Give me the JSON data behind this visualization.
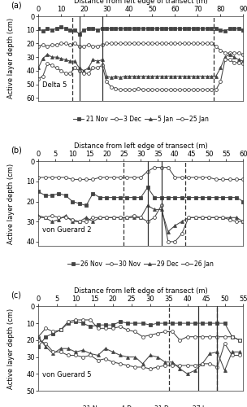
{
  "panel_a": {
    "title": "Distance from left edge of transect (m)",
    "ylabel": "Active layer depth (cm)",
    "label": "Delta 5",
    "xlabel_ticks": [
      0,
      10,
      20,
      30,
      40,
      50,
      60,
      70,
      80,
      90
    ],
    "ylim": [
      62,
      0
    ],
    "yticks": [
      0,
      10,
      20,
      30,
      40,
      50,
      60
    ],
    "solid_vlines": [
      18,
      28
    ],
    "dashed_vlines": [
      15,
      77
    ],
    "series": {
      "21 Nov": {
        "x": [
          0,
          2,
          4,
          6,
          8,
          10,
          12,
          14,
          16,
          18,
          20,
          22,
          24,
          26,
          28,
          30,
          32,
          34,
          36,
          38,
          40,
          42,
          44,
          46,
          48,
          50,
          52,
          54,
          56,
          58,
          60,
          62,
          64,
          66,
          68,
          70,
          72,
          74,
          76,
          78,
          80,
          82,
          84,
          86,
          88,
          90
        ],
        "y": [
          9,
          11,
          9,
          10,
          9,
          8,
          9,
          10,
          10,
          13,
          10,
          9,
          9,
          10,
          9,
          9,
          9,
          9,
          9,
          9,
          9,
          9,
          9,
          9,
          9,
          9,
          9,
          9,
          9,
          9,
          9,
          9,
          9,
          9,
          9,
          9,
          9,
          9,
          9,
          9,
          10,
          11,
          9,
          9,
          9,
          10
        ],
        "marker": "s",
        "filled": true
      },
      "3 Dec": {
        "x": [
          0,
          2,
          4,
          6,
          8,
          10,
          12,
          14,
          16,
          18,
          20,
          22,
          24,
          26,
          28,
          30,
          32,
          34,
          36,
          38,
          40,
          42,
          44,
          46,
          48,
          50,
          52,
          54,
          56,
          58,
          60,
          62,
          64,
          66,
          68,
          70,
          72,
          74,
          76,
          78,
          80,
          82,
          84,
          86,
          88,
          90
        ],
        "y": [
          22,
          21,
          22,
          21,
          21,
          20,
          20,
          21,
          20,
          22,
          22,
          21,
          22,
          22,
          21,
          20,
          20,
          20,
          20,
          20,
          20,
          20,
          20,
          20,
          20,
          20,
          20,
          20,
          20,
          20,
          20,
          20,
          20,
          20,
          20,
          20,
          20,
          20,
          20,
          22,
          25,
          27,
          27,
          27,
          27,
          28
        ],
        "marker": "o",
        "filled": false
      },
      "5 Jan": {
        "x": [
          0,
          2,
          4,
          6,
          8,
          10,
          12,
          14,
          16,
          18,
          20,
          22,
          24,
          26,
          28,
          30,
          32,
          34,
          36,
          38,
          40,
          42,
          44,
          46,
          48,
          50,
          52,
          54,
          56,
          58,
          60,
          62,
          64,
          66,
          68,
          70,
          72,
          74,
          76,
          78,
          80,
          82,
          84,
          86,
          88,
          90
        ],
        "y": [
          38,
          31,
          28,
          30,
          30,
          31,
          32,
          33,
          33,
          38,
          40,
          38,
          32,
          33,
          32,
          44,
          45,
          44,
          45,
          44,
          44,
          44,
          44,
          44,
          44,
          44,
          44,
          44,
          44,
          44,
          44,
          44,
          44,
          44,
          44,
          44,
          44,
          44,
          44,
          44,
          38,
          30,
          28,
          30,
          32,
          33
        ],
        "marker": "^",
        "filled": true
      },
      "25 Jan": {
        "x": [
          0,
          2,
          4,
          6,
          8,
          10,
          12,
          14,
          16,
          18,
          20,
          22,
          24,
          26,
          28,
          30,
          32,
          34,
          36,
          38,
          40,
          42,
          44,
          46,
          48,
          50,
          52,
          54,
          56,
          58,
          60,
          62,
          64,
          66,
          68,
          70,
          72,
          74,
          76,
          78,
          80,
          82,
          84,
          86,
          88,
          90
        ],
        "y": [
          46,
          44,
          35,
          36,
          38,
          40,
          42,
          42,
          38,
          40,
          42,
          42,
          38,
          38,
          36,
          48,
          52,
          53,
          54,
          54,
          54,
          54,
          53,
          54,
          54,
          54,
          54,
          54,
          54,
          54,
          54,
          54,
          54,
          54,
          54,
          54,
          54,
          54,
          54,
          54,
          48,
          32,
          32,
          34,
          34,
          35
        ],
        "marker": "o",
        "filled": false
      }
    }
  },
  "panel_b": {
    "title": "Distance from left edge of transect (m)",
    "ylabel": "Active layer depth (cm)",
    "label": "von Guerard 2",
    "xlabel_ticks": [
      0,
      5,
      10,
      15,
      20,
      25,
      30,
      35,
      40,
      45,
      50,
      55,
      60
    ],
    "ylim": [
      42,
      0
    ],
    "yticks": [
      0,
      10,
      20,
      30,
      40
    ],
    "solid_vlines": [
      32,
      36
    ],
    "dashed_vlines": [
      25,
      43
    ],
    "series": {
      "26 Nov": {
        "x": [
          0,
          2,
          4,
          6,
          8,
          10,
          12,
          14,
          16,
          18,
          20,
          22,
          24,
          26,
          28,
          30,
          32,
          34,
          36,
          38,
          40,
          42,
          44,
          46,
          48,
          50,
          52,
          54,
          56,
          58,
          60
        ],
        "y": [
          15,
          17,
          17,
          16,
          17,
          20,
          21,
          22,
          16,
          18,
          18,
          18,
          18,
          18,
          18,
          18,
          13,
          18,
          18,
          18,
          18,
          18,
          18,
          18,
          18,
          18,
          18,
          18,
          18,
          18,
          20
        ],
        "marker": "s",
        "filled": true
      },
      "30 Nov": {
        "x": [
          0,
          2,
          4,
          6,
          8,
          10,
          12,
          14,
          16,
          18,
          20,
          22,
          24,
          26,
          28,
          30,
          32,
          34,
          36,
          38,
          40,
          42,
          44,
          46,
          48,
          50,
          52,
          54,
          56,
          58,
          60
        ],
        "y": [
          8,
          8,
          8,
          8,
          8,
          9,
          9,
          9,
          9,
          8,
          8,
          8,
          8,
          8,
          8,
          8,
          5,
          3,
          3,
          3,
          8,
          8,
          8,
          8,
          8,
          8,
          9,
          9,
          9,
          9,
          9
        ],
        "marker": "o",
        "filled": false
      },
      "29 Dec": {
        "x": [
          0,
          2,
          4,
          6,
          8,
          10,
          12,
          14,
          16,
          18,
          20,
          22,
          24,
          26,
          28,
          30,
          32,
          34,
          36,
          38,
          40,
          42,
          44,
          46,
          48,
          50,
          52,
          54,
          56,
          58,
          60
        ],
        "y": [
          27,
          28,
          30,
          29,
          27,
          30,
          30,
          28,
          30,
          28,
          28,
          28,
          28,
          28,
          28,
          28,
          22,
          24,
          24,
          35,
          32,
          30,
          28,
          28,
          28,
          28,
          28,
          28,
          28,
          28,
          30
        ],
        "marker": "^",
        "filled": true
      },
      "26 Jan": {
        "x": [
          0,
          2,
          4,
          6,
          8,
          10,
          12,
          14,
          16,
          18,
          20,
          22,
          24,
          26,
          28,
          30,
          32,
          34,
          36,
          38,
          40,
          42,
          44,
          46,
          48,
          50,
          52,
          54,
          56,
          58,
          60
        ],
        "y": [
          28,
          28,
          27,
          28,
          28,
          29,
          30,
          30,
          28,
          28,
          28,
          28,
          28,
          28,
          27,
          28,
          30,
          28,
          22,
          40,
          40,
          36,
          28,
          28,
          28,
          28,
          28,
          28,
          29,
          30,
          30
        ],
        "marker": "o",
        "filled": false
      }
    }
  },
  "panel_c": {
    "title": "Distance from left edge of transect (m)",
    "ylabel": "Active layer depth (cm)",
    "label": "von Guerard 5",
    "xlabel_ticks": [
      0,
      5,
      10,
      15,
      20,
      25,
      30,
      35,
      40,
      45,
      50,
      55
    ],
    "ylim": [
      50,
      0
    ],
    "yticks": [
      0,
      10,
      20,
      30,
      40,
      50
    ],
    "solid_vlines": [
      43,
      48
    ],
    "dashed_vlines": [
      35,
      48
    ],
    "series": {
      "21 Nov": {
        "x": [
          0,
          2,
          4,
          6,
          8,
          10,
          12,
          14,
          16,
          18,
          20,
          22,
          24,
          26,
          28,
          30,
          32,
          34,
          36,
          38,
          40,
          42,
          44,
          46,
          48,
          50,
          52,
          54
        ],
        "y": [
          24,
          18,
          16,
          14,
          10,
          9,
          10,
          12,
          11,
          11,
          11,
          9,
          10,
          10,
          10,
          11,
          10,
          10,
          10,
          10,
          10,
          10,
          10,
          10,
          10,
          10,
          18,
          20
        ],
        "marker": "s",
        "filled": true
      },
      "4 Dec": {
        "x": [
          0,
          2,
          4,
          6,
          8,
          10,
          12,
          14,
          16,
          18,
          20,
          22,
          24,
          26,
          28,
          30,
          32,
          34,
          36,
          38,
          40,
          42,
          44,
          46,
          48,
          50,
          52,
          54
        ],
        "y": [
          18,
          13,
          15,
          14,
          9,
          8,
          8,
          8,
          13,
          13,
          13,
          12,
          14,
          15,
          18,
          17,
          16,
          15,
          15,
          20,
          18,
          18,
          18,
          18,
          18,
          18,
          18,
          20
        ],
        "marker": "o",
        "filled": false
      },
      "31 Dec": {
        "x": [
          0,
          2,
          4,
          6,
          8,
          10,
          12,
          14,
          16,
          18,
          20,
          22,
          24,
          26,
          28,
          30,
          32,
          34,
          36,
          38,
          40,
          42,
          44,
          46,
          48,
          50,
          52,
          54
        ],
        "y": [
          18,
          24,
          28,
          25,
          25,
          27,
          26,
          28,
          29,
          25,
          27,
          29,
          30,
          30,
          34,
          29,
          30,
          33,
          33,
          37,
          40,
          38,
          34,
          28,
          27,
          38,
          27,
          27
        ],
        "marker": "^",
        "filled": true
      },
      "27 Jan": {
        "x": [
          0,
          2,
          4,
          6,
          8,
          10,
          12,
          14,
          16,
          18,
          20,
          22,
          24,
          26,
          28,
          30,
          32,
          34,
          36,
          38,
          40,
          42,
          44,
          46,
          48,
          50,
          52,
          54
        ],
        "y": [
          20,
          22,
          27,
          27,
          29,
          29,
          30,
          29,
          32,
          31,
          33,
          34,
          35,
          36,
          36,
          37,
          36,
          35,
          35,
          35,
          35,
          35,
          34,
          34,
          36,
          22,
          29,
          29
        ],
        "marker": "o",
        "filled": false
      }
    }
  },
  "line_color": "#444444",
  "marker_size": 2.8,
  "line_width": 0.75,
  "font_size": 6.0
}
